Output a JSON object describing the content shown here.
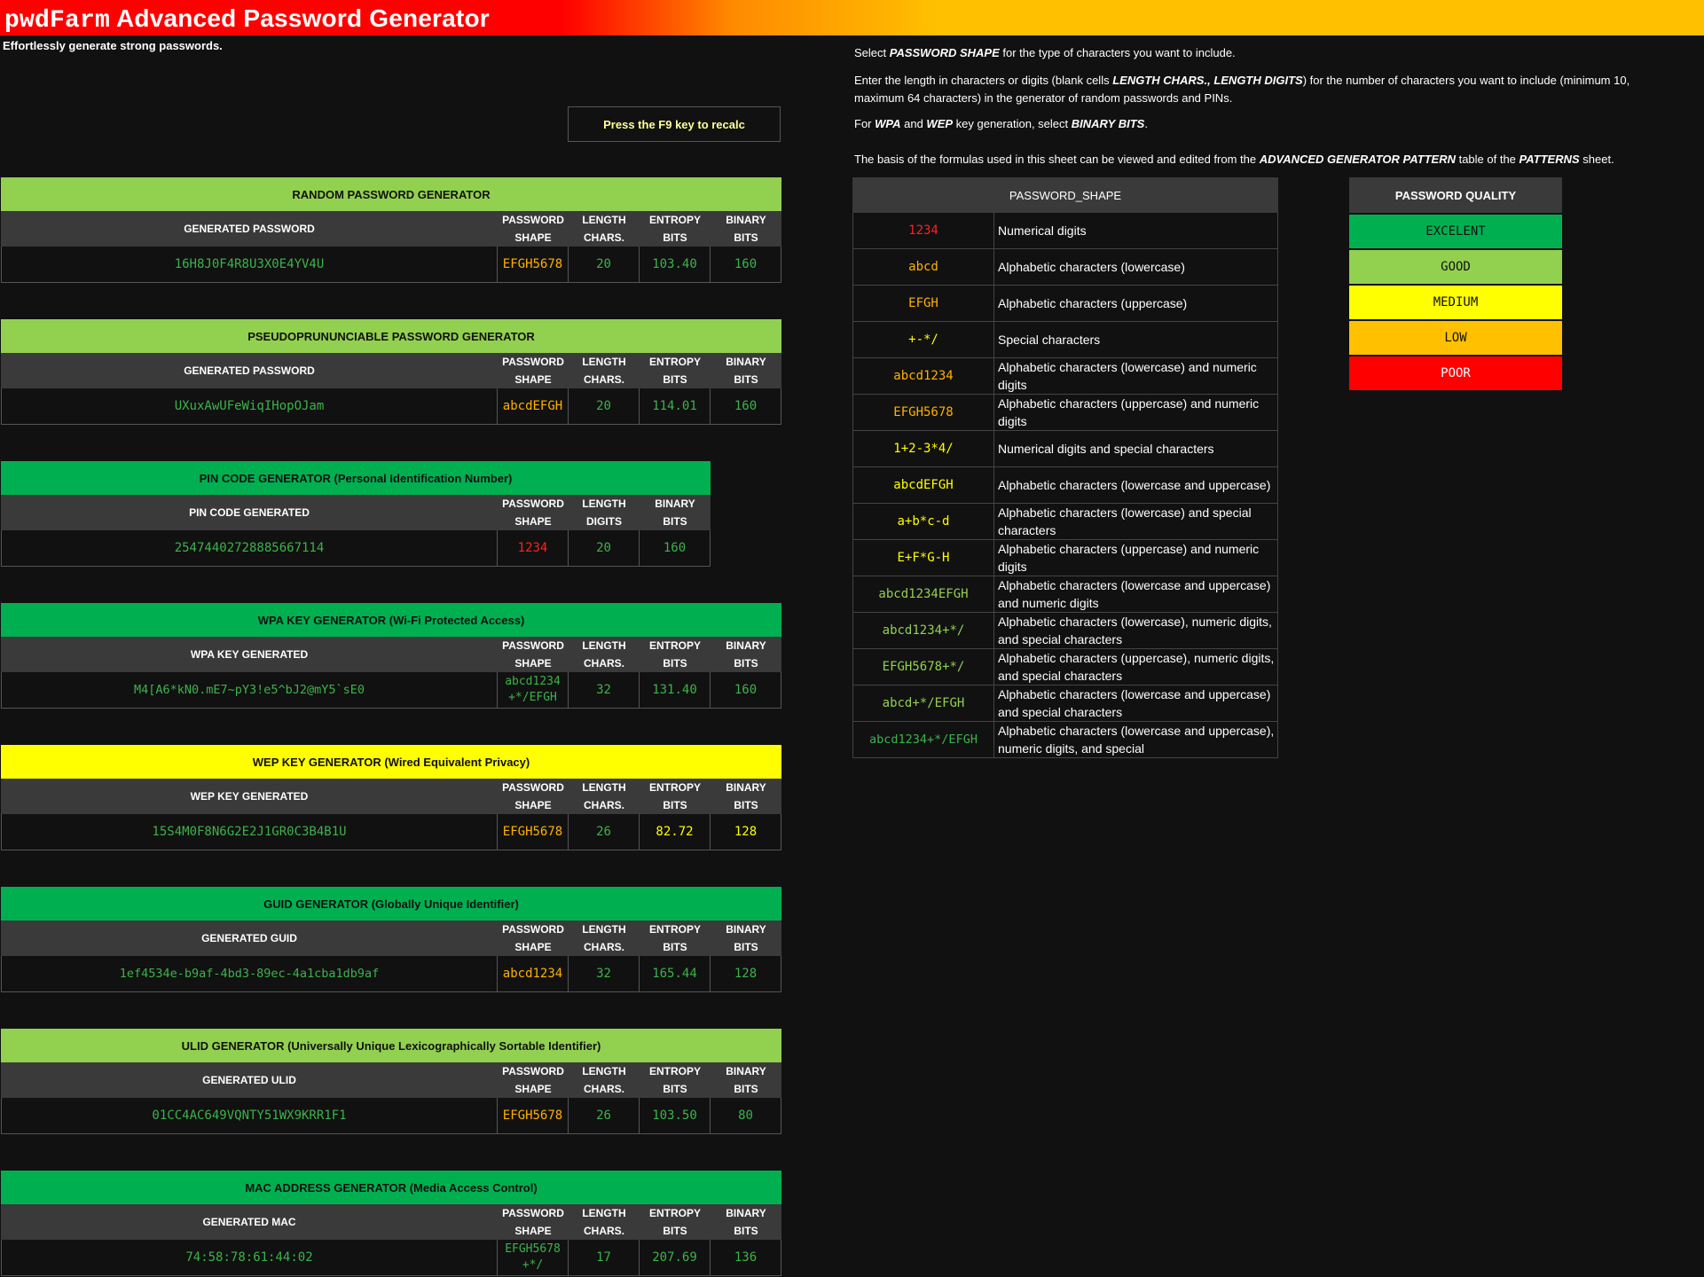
{
  "header": {
    "title_brand": "pwdFarm",
    "title_rest": " Advanced Password Generator",
    "subtitle": "Effortlessly generate strong passwords.",
    "recalc_label": "Press the F9 key to recalc"
  },
  "colors": {
    "excellent": "#00b050",
    "good": "#92d050",
    "medium": "#ffff00",
    "low": "#ffc000",
    "poor": "#ff0000"
  },
  "generators": [
    {
      "title": "RANDOM PASSWORD GENERATOR",
      "bar_color": "#92d050",
      "col0": "GENERATED PASSWORD",
      "col_shape": "PASSWORD\nSHAPE",
      "col_length": "LENGTH\nCHARS.",
      "col_entropy": "ENTROPY\nBITS",
      "col_binary": "BINARY\nBITS",
      "value": "16H8J0F4R8U3X0E4YV4U",
      "shape": "EFGH5678",
      "length": "20",
      "entropy": "103.40",
      "binary": "160"
    },
    {
      "title": "PSEUDOPRUNUNCIABLE PASSWORD GENERATOR",
      "bar_color": "#92d050",
      "col0": "GENERATED PASSWORD",
      "col_shape": "PASSWORD\nSHAPE",
      "col_length": "LENGTH\nCHARS.",
      "col_entropy": "ENTROPY\nBITS",
      "col_binary": "BINARY\nBITS",
      "value": "UXuxAwUFeWiqIHopOJam",
      "shape": "abcdEFGH",
      "length": "20",
      "entropy": "114.01",
      "binary": "160"
    },
    {
      "title": "PIN CODE GENERATOR (Personal Identification Number)",
      "bar_color": "#00b050",
      "col0": "PIN CODE GENERATED",
      "col_shape": "PASSWORD\nSHAPE",
      "col_length": "LENGTH\nDIGITS",
      "col_binary": "BINARY\nBITS",
      "value": "25474402728885667114",
      "shape": "1234",
      "length": "20",
      "binary": "160"
    },
    {
      "title": "WPA KEY GENERATOR (Wi-Fi Protected Access)",
      "bar_color": "#00b050",
      "col0": "WPA KEY GENERATED",
      "col_shape": "PASSWORD\nSHAPE",
      "col_length": "LENGTH\nCHARS.",
      "col_entropy": "ENTROPY\nBITS",
      "col_binary": "BINARY\nBITS",
      "value": "M4[A6*kN0.mE7~pY3!e5^bJ2@mY5`sE0",
      "shape": "abcd1234\n+*/EFGH",
      "length": "32",
      "entropy": "131.40",
      "binary": "160"
    },
    {
      "title": "WEP KEY GENERATOR (Wired Equivalent Privacy)",
      "bar_color": "#ffff00",
      "col0": "WEP KEY GENERATED",
      "col_shape": "PASSWORD\nSHAPE",
      "col_length": "LENGTH\nCHARS.",
      "col_entropy": "ENTROPY\nBITS",
      "col_binary": "BINARY\nBITS",
      "value": "15S4M0F8N6G2E2J1GR0C3B4B1U",
      "shape": "EFGH5678",
      "length": "26",
      "entropy": "82.72",
      "binary": "128"
    },
    {
      "title": "GUID GENERATOR (Globally Unique Identifier)",
      "bar_color": "#00b050",
      "col0": "GENERATED GUID",
      "col_shape": "PASSWORD\nSHAPE",
      "col_length": "LENGTH\nCHARS.",
      "col_entropy": "ENTROPY\nBITS",
      "col_binary": "BINARY\nBITS",
      "value": "1ef4534e-b9af-4bd3-89ec-4a1cba1db9af",
      "shape": "abcd1234",
      "length": "32",
      "entropy": "165.44",
      "binary": "128"
    },
    {
      "title": "ULID GENERATOR (Universally Unique Lexicographically Sortable Identifier)",
      "bar_color": "#92d050",
      "col0": "GENERATED ULID",
      "col_shape": "PASSWORD\nSHAPE",
      "col_length": "LENGTH\nCHARS.",
      "col_entropy": "ENTROPY\nBITS",
      "col_binary": "BINARY\nBITS",
      "value": "01CC4AC649VQNTY51WX9KRR1F1",
      "shape": "EFGH5678",
      "length": "26",
      "entropy": "103.50",
      "binary": "80"
    },
    {
      "title": "MAC ADDRESS GENERATOR (Media Access Control)",
      "bar_color": "#00b050",
      "col0": "GENERATED MAC",
      "col_shape": "PASSWORD\nSHAPE",
      "col_length": "LENGTH\nCHARS.",
      "col_entropy": "ENTROPY\nBITS",
      "col_binary": "BINARY\nBITS",
      "value": "74:58:78:61:44:02",
      "shape": "EFGH5678\n+*/",
      "length": "17",
      "entropy": "207.69",
      "binary": "136"
    }
  ],
  "info": {
    "line1_a": "Select ",
    "line1_b": "PASSWORD SHAPE",
    "line1_c": "  for the type of characters you want to include.",
    "line2_a": "Enter the length in characters or digits (blank cells ",
    "line2_b": "LENGTH CHARS., LENGTH DIGITS",
    "line2_c": ") for the number of characters you want to include (minimum 10,",
    "line2_d": "maximum 64 characters) in the generator of random passwords and PINs.",
    "line3_a": "For ",
    "line3_b": "WPA",
    "line3_c": "  and ",
    "line3_d": "WEP",
    "line3_e": "  key generation, select ",
    "line3_f": "BINARY BITS",
    "line3_g": ".",
    "line4_a": "The basis of the formulas used in this sheet can be viewed and edited from the ",
    "line4_b": "ADVANCED GENERATOR PATTERN",
    "line4_c": "  table of the ",
    "line4_d": "PATTERNS",
    "line4_e": "  sheet."
  },
  "shapes": {
    "header": "PASSWORD_SHAPE",
    "rows": [
      {
        "code": "1234",
        "desc": "Numerical digits",
        "tone": "red"
      },
      {
        "code": "abcd",
        "desc": "Alphabetic characters (lowercase)",
        "tone": "orange"
      },
      {
        "code": "EFGH",
        "desc": "Alphabetic characters (uppercase)",
        "tone": "orange"
      },
      {
        "code": "+-*/",
        "desc": "Special characters",
        "tone": "yellow"
      },
      {
        "code": "abcd1234",
        "desc": "Alphabetic characters (lowercase) and numeric digits",
        "tone": "orange"
      },
      {
        "code": "EFGH5678",
        "desc": "Alphabetic characters (uppercase) and numeric digits",
        "tone": "orange"
      },
      {
        "code": "1+2-3*4/",
        "desc": "Numerical digits and special characters",
        "tone": "yellow"
      },
      {
        "code": "abcdEFGH",
        "desc": "Alphabetic characters (lowercase and uppercase)",
        "tone": "yellow"
      },
      {
        "code": "a+b*c-d",
        "desc": "Alphabetic characters (lowercase) and special characters",
        "tone": "yellow"
      },
      {
        "code": "E+F*G-H",
        "desc": "Alphabetic characters (uppercase) and numeric digits",
        "tone": "yellow"
      },
      {
        "code": "abcd1234EFGH",
        "desc": "Alphabetic characters (lowercase and uppercase) and numeric digits",
        "tone": "lime"
      },
      {
        "code": "abcd1234+*/",
        "desc": "Alphabetic characters (lowercase), numeric digits, and special characters",
        "tone": "lime"
      },
      {
        "code": "EFGH5678+*/",
        "desc": "Alphabetic characters (uppercase), numeric digits, and special characters",
        "tone": "lime"
      },
      {
        "code": "abcd+*/EFGH",
        "desc": "Alphabetic characters (lowercase and uppercase) and special characters",
        "tone": "lime"
      },
      {
        "code": "abcd1234+*/EFGH",
        "desc": "Alphabetic characters (lowercase and uppercase), numeric digits, and special",
        "tone": "green"
      }
    ]
  },
  "quality": {
    "header": "PASSWORD QUALITY",
    "levels": [
      {
        "label": "EXCELENT",
        "bg": "#00b050",
        "fg": "#111111"
      },
      {
        "label": "GOOD",
        "bg": "#92d050",
        "fg": "#111111"
      },
      {
        "label": "MEDIUM",
        "bg": "#ffff00",
        "fg": "#111111"
      },
      {
        "label": "LOW",
        "bg": "#ffc000",
        "fg": "#111111"
      },
      {
        "label": "POOR",
        "bg": "#ff0000",
        "fg": "#ffffff"
      }
    ]
  }
}
